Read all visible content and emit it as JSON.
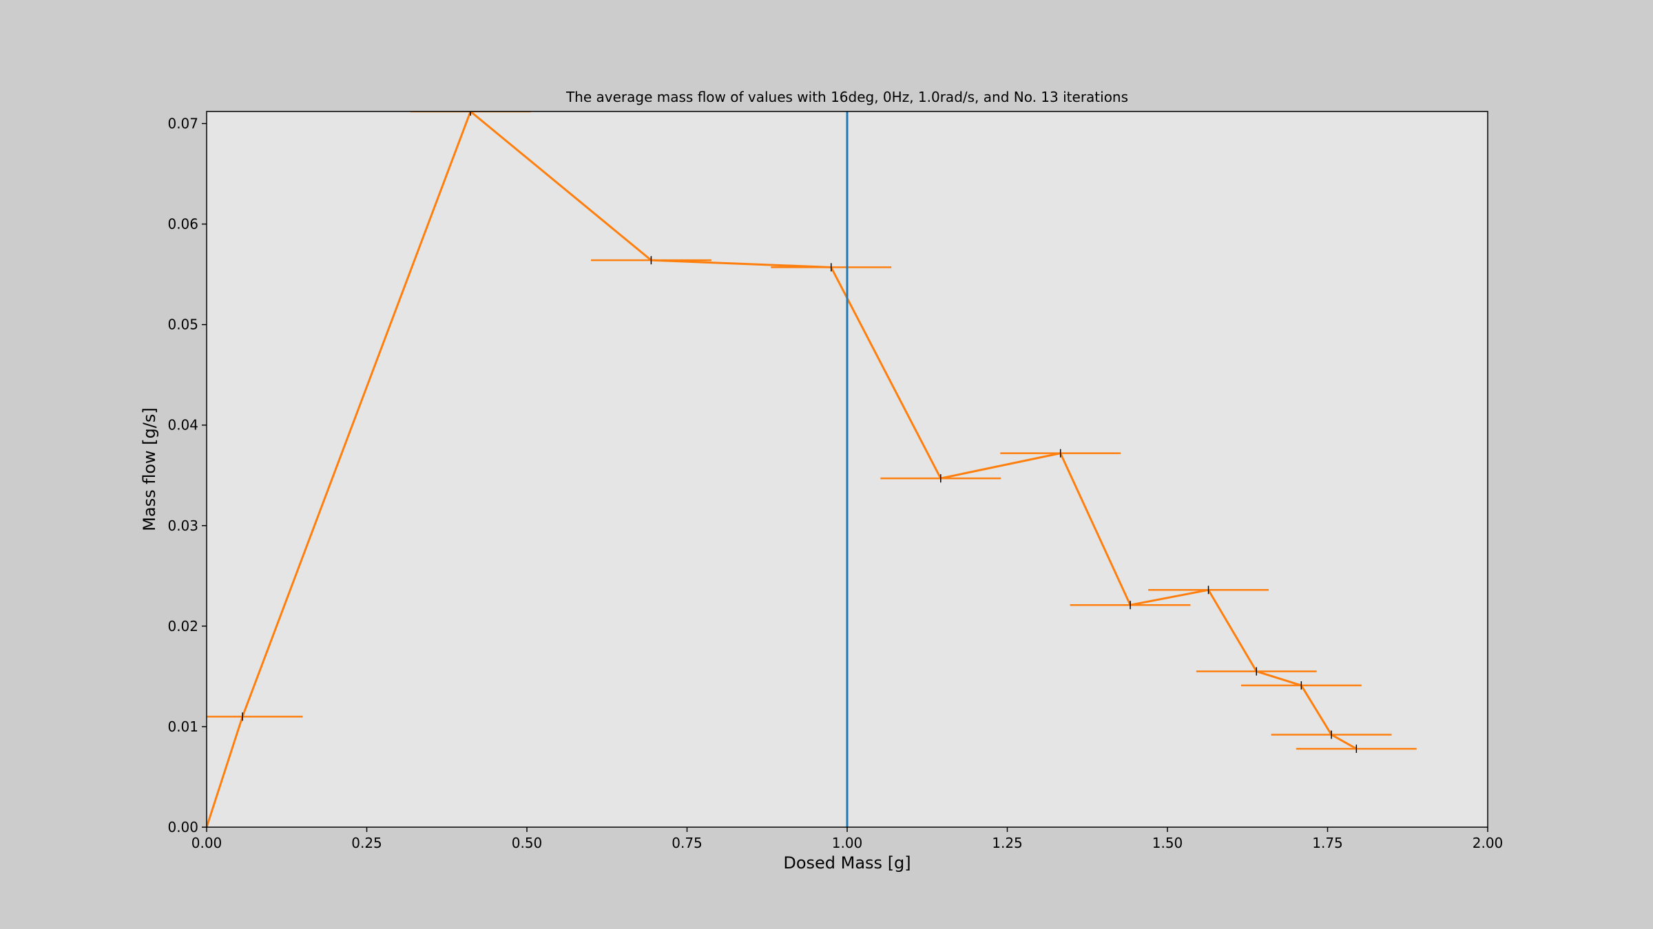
{
  "chart_data": {
    "type": "line",
    "title": "The average mass flow of values with 16deg, 0Hz, 1.0rad/s, and No. 13 iterations",
    "xlabel": "Dosed Mass [g]",
    "ylabel": "Mass flow [g/s]",
    "xlim": [
      0.0,
      2.0
    ],
    "ylim": [
      0.0,
      0.0712
    ],
    "xticks": [
      0.0,
      0.25,
      0.5,
      0.75,
      1.0,
      1.25,
      1.5,
      1.75,
      2.0
    ],
    "xtick_labels": [
      "0.00",
      "0.25",
      "0.50",
      "0.75",
      "1.00",
      "1.25",
      "1.50",
      "1.75",
      "2.00"
    ],
    "yticks": [
      0.0,
      0.01,
      0.02,
      0.03,
      0.04,
      0.05,
      0.06,
      0.07
    ],
    "ytick_labels": [
      "0.00",
      "0.01",
      "0.02",
      "0.03",
      "0.04",
      "0.05",
      "0.06",
      "0.07"
    ],
    "grid": false,
    "legend": "none",
    "series": [
      {
        "color": "#ff7f0e",
        "x": [
          0.0,
          0.056,
          0.412,
          0.694,
          0.975,
          1.146,
          1.333,
          1.442,
          1.564,
          1.639,
          1.709,
          1.756,
          1.795
        ],
        "y": [
          0.0,
          0.011,
          0.0712,
          0.0564,
          0.0557,
          0.0347,
          0.0372,
          0.0221,
          0.0236,
          0.0155,
          0.0141,
          0.0092,
          0.0078
        ],
        "xerr": [
          0.0,
          0.094,
          0.094,
          0.094,
          0.094,
          0.094,
          0.094,
          0.094,
          0.094,
          0.094,
          0.094,
          0.094,
          0.094
        ]
      }
    ],
    "vline": {
      "x": 1.0,
      "color": "#1f77b4"
    },
    "marker_color": "#000000",
    "axes_bg": "#e5e5e5",
    "figure_bg": "#cccccc"
  }
}
